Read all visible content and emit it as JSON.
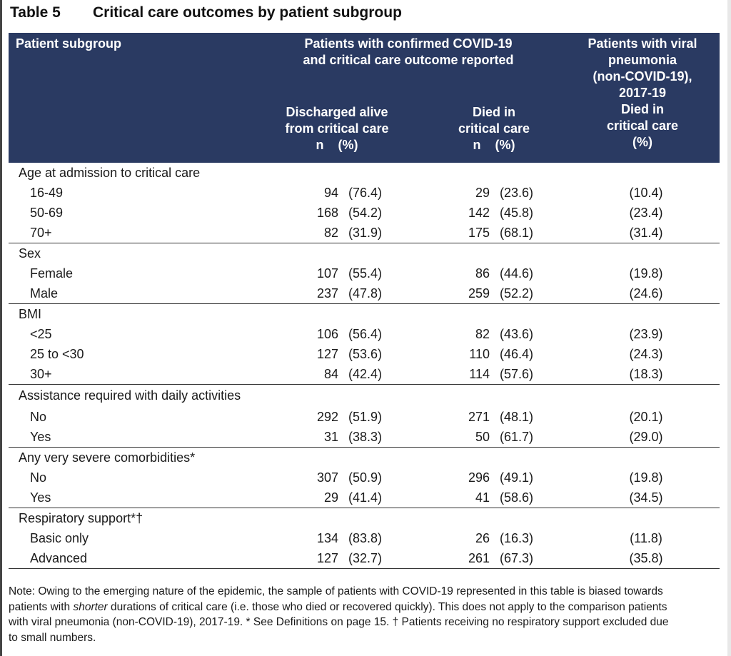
{
  "table_number": "Table 5",
  "table_title": "Critical care outcomes by patient subgroup",
  "headers": {
    "subgroup": "Patient subgroup",
    "covid_group_line1": "Patients with confirmed COVID-19",
    "covid_group_line2": "and critical care outcome reported",
    "discharged_line1": "Discharged alive",
    "discharged_line2": "from critical care",
    "died_line1": "Died in",
    "died_line2": "critical care",
    "n_pct": "n    (%)",
    "viral_line1": "Patients with viral",
    "viral_line2": "pneumonia",
    "viral_line3": "(non-COVID-19),",
    "viral_line4": "2017-19",
    "viral_line5": "Died in",
    "viral_line6": "critical care",
    "viral_line7": "(%)"
  },
  "sections": [
    {
      "label": "Age at admission to critical care",
      "rows": [
        {
          "label": "16-49",
          "dis_n": "94",
          "dis_pct": "(76.4)",
          "died_n": "29",
          "died_pct": "(23.6)",
          "viral_pct": "(10.4)"
        },
        {
          "label": "50-69",
          "dis_n": "168",
          "dis_pct": "(54.2)",
          "died_n": "142",
          "died_pct": "(45.8)",
          "viral_pct": "(23.4)"
        },
        {
          "label": "70+",
          "dis_n": "82",
          "dis_pct": "(31.9)",
          "died_n": "175",
          "died_pct": "(68.1)",
          "viral_pct": "(31.4)"
        }
      ]
    },
    {
      "label": "Sex",
      "rows": [
        {
          "label": "Female",
          "dis_n": "107",
          "dis_pct": "(55.4)",
          "died_n": "86",
          "died_pct": "(44.6)",
          "viral_pct": "(19.8)"
        },
        {
          "label": "Male",
          "dis_n": "237",
          "dis_pct": "(47.8)",
          "died_n": "259",
          "died_pct": "(52.2)",
          "viral_pct": "(24.6)"
        }
      ]
    },
    {
      "label": "BMI",
      "rows": [
        {
          "label": "<25",
          "dis_n": "106",
          "dis_pct": "(56.4)",
          "died_n": "82",
          "died_pct": "(43.6)",
          "viral_pct": "(23.9)"
        },
        {
          "label": "25 to <30",
          "dis_n": "127",
          "dis_pct": "(53.6)",
          "died_n": "110",
          "died_pct": "(46.4)",
          "viral_pct": "(24.3)"
        },
        {
          "label": "30+",
          "dis_n": "84",
          "dis_pct": "(42.4)",
          "died_n": "114",
          "died_pct": "(57.6)",
          "viral_pct": "(18.3)"
        }
      ]
    },
    {
      "label": "Assistance required with daily activities",
      "rows": [
        {
          "label": "No",
          "dis_n": "292",
          "dis_pct": "(51.9)",
          "died_n": "271",
          "died_pct": "(48.1)",
          "viral_pct": "(20.1)"
        },
        {
          "label": "Yes",
          "dis_n": "31",
          "dis_pct": "(38.3)",
          "died_n": "50",
          "died_pct": "(61.7)",
          "viral_pct": "(29.0)"
        }
      ]
    },
    {
      "label": "Any very severe comorbidities*",
      "rows": [
        {
          "label": "No",
          "dis_n": "307",
          "dis_pct": "(50.9)",
          "died_n": "296",
          "died_pct": "(49.1)",
          "viral_pct": "(19.8)"
        },
        {
          "label": "Yes",
          "dis_n": "29",
          "dis_pct": "(41.4)",
          "died_n": "41",
          "died_pct": "(58.6)",
          "viral_pct": "(34.5)"
        }
      ]
    },
    {
      "label": "Respiratory support*†",
      "rows": [
        {
          "label": "Basic only",
          "dis_n": "134",
          "dis_pct": "(83.8)",
          "died_n": "26",
          "died_pct": "(16.3)",
          "viral_pct": "(11.8)"
        },
        {
          "label": "Advanced",
          "dis_n": "127",
          "dis_pct": "(32.7)",
          "died_n": "261",
          "died_pct": "(67.3)",
          "viral_pct": "(35.8)"
        }
      ]
    }
  ],
  "note": {
    "prefix": "Note: Owing to the emerging nature of the epidemic, the sample of patients with COVID-19 represented in this table is biased towards patients with ",
    "emphasis": "shorter",
    "suffix": " durations of critical care (i.e. those who died or recovered quickly). This does not apply to the comparison patients with viral pneumonia (non-COVID-19), 2017-19. * See Definitions on page 15. † Patients receiving no respiratory support excluded due to small numbers."
  },
  "colors": {
    "header_bg": "#2a3a62",
    "header_text": "#ffffff",
    "rule": "#333333"
  }
}
